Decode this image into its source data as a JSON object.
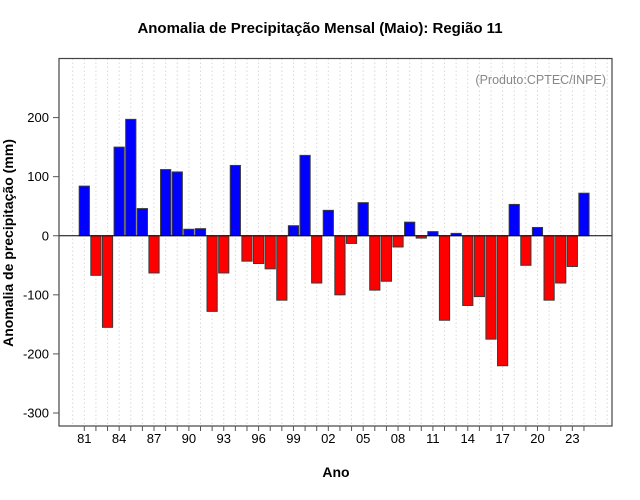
{
  "chart_data": {
    "type": "bar",
    "title": "Anomalia de Precipitação Mensal (Maio): Região 11",
    "xlabel": "Ano",
    "ylabel": "Anomalia de precipitação (mm)",
    "annotation": "(Produto:CPTEC/INPE)",
    "years": [
      1981,
      1982,
      1983,
      1984,
      1985,
      1986,
      1987,
      1988,
      1989,
      1990,
      1991,
      1992,
      1993,
      1994,
      1995,
      1996,
      1997,
      1998,
      1999,
      2000,
      2001,
      2002,
      2003,
      2004,
      2005,
      2006,
      2007,
      2008,
      2009,
      2010,
      2011,
      2012,
      2013,
      2014,
      2015,
      2016,
      2017,
      2018,
      2019,
      2020,
      2021,
      2022,
      2023,
      2024
    ],
    "values": [
      84,
      -67,
      -155,
      150,
      197,
      46,
      -63,
      112,
      108,
      11,
      12,
      -128,
      -63,
      119,
      -43,
      -47,
      -56,
      -109,
      17,
      136,
      -80,
      43,
      -100,
      -13,
      56,
      -92,
      -77,
      -19,
      23,
      -4,
      7,
      -143,
      4,
      -118,
      -103,
      -175,
      -220,
      53,
      -50,
      14,
      -109,
      -80,
      -52,
      72
    ],
    "x_tick_labels": [
      "81",
      "84",
      "87",
      "90",
      "93",
      "96",
      "99",
      "02",
      "05",
      "08",
      "11",
      "14",
      "17",
      "20",
      "23"
    ],
    "x_label_step": 3,
    "yticks": [
      200,
      100,
      0,
      -100,
      -200,
      -300
    ],
    "ylim": [
      -322,
      300
    ],
    "grid": "vertical dotted lines at each year",
    "legend": "none",
    "colors": {
      "positive": "#0000ff",
      "negative": "#ff0000",
      "bar_border": "#3a3a3a",
      "grid": "#d9d9d9",
      "annotation": "#878787",
      "axis": "#000000",
      "box": "#444444"
    }
  }
}
